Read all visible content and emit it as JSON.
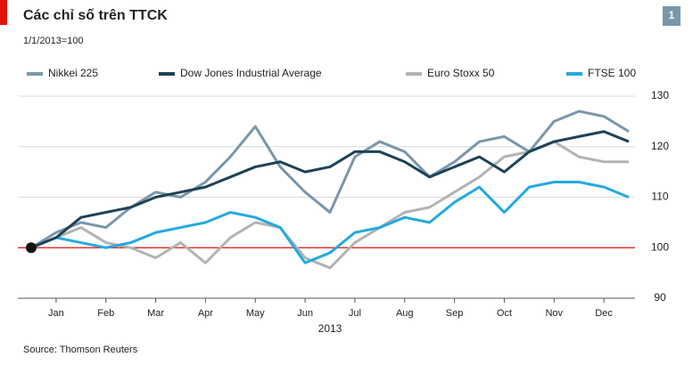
{
  "chart_data": {
    "type": "line",
    "title": "Các chỉ số trên TTCK",
    "subtitle": "1/1/2013=100",
    "chart_number": "1",
    "source": "Source: Thomson Reuters",
    "x_label": "2013",
    "categories": [
      null,
      "Jan",
      null,
      "Feb",
      null,
      "Mar",
      null,
      "Apr",
      null,
      "May",
      null,
      "Jun",
      null,
      "Jul",
      null,
      "Aug",
      null,
      "Sep",
      null,
      "Oct",
      null,
      "Nov",
      null,
      "Dec",
      null
    ],
    "series": [
      {
        "name": "Nikkei 225",
        "color": "#7a97aa",
        "values": [
          100,
          103,
          105,
          104,
          108,
          111,
          110,
          113,
          118,
          124,
          116,
          111,
          107,
          118,
          121,
          119,
          114,
          117,
          121,
          122,
          119,
          125,
          127,
          126,
          123
        ]
      },
      {
        "name": "Dow Jones Industrial Average",
        "color": "#1c4257",
        "values": [
          100,
          102,
          106,
          107,
          108,
          110,
          111,
          112,
          114,
          116,
          117,
          115,
          116,
          119,
          119,
          117,
          114,
          116,
          118,
          115,
          119,
          121,
          122,
          123,
          121
        ]
      },
      {
        "name": "Euro Stoxx 50",
        "color": "#b3b3b3",
        "values": [
          100,
          102,
          104,
          101,
          100,
          98,
          101,
          97,
          102,
          105,
          104,
          98,
          96,
          101,
          104,
          107,
          108,
          111,
          114,
          118,
          119,
          121,
          118,
          117,
          117
        ]
      },
      {
        "name": "FTSE 100",
        "color": "#25a9df",
        "values": [
          100,
          102,
          101,
          100,
          101,
          103,
          104,
          105,
          107,
          106,
          104,
          97,
          99,
          103,
          104,
          106,
          105,
          109,
          112,
          107,
          112,
          113,
          113,
          112,
          110
        ]
      }
    ],
    "baseline": 100,
    "ylim": [
      90,
      130
    ],
    "yticks": [
      90,
      100,
      110,
      120,
      130
    ],
    "grid": true
  }
}
